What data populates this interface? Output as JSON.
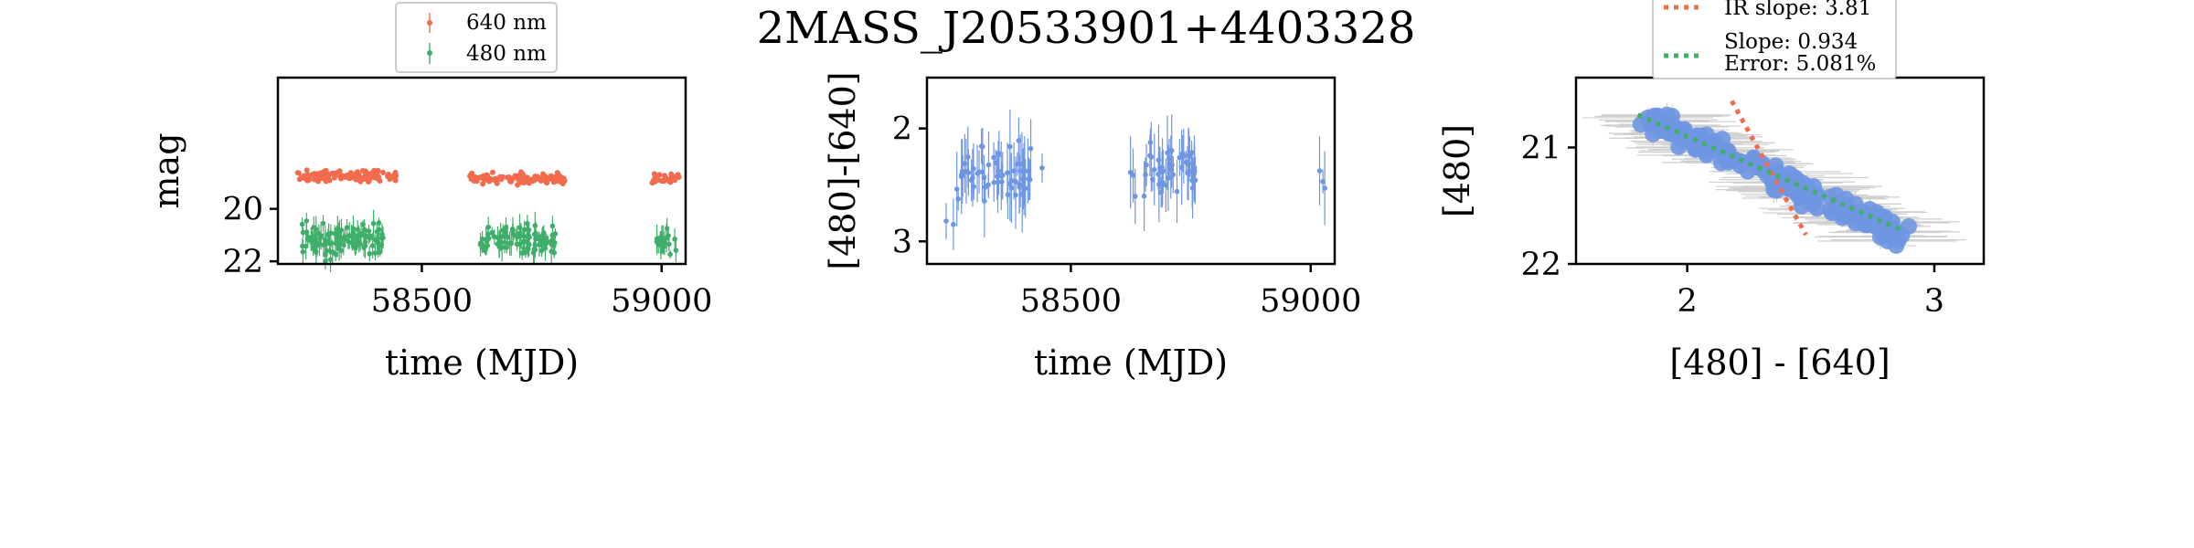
{
  "title": "2MASS_J20533901+4403328",
  "colors": {
    "red": "#f26b4d",
    "green": "#3fae6a",
    "blue": "#6f96e2",
    "errorbar_gray": "#cfcfcf"
  },
  "chart_data": [
    {
      "type": "scatter",
      "name": "light-curve",
      "xlabel": "time (MJD)",
      "ylabel": "mag",
      "xlim": [
        58200,
        59050
      ],
      "ylim": [
        22.1,
        15.0
      ],
      "y_inverted": true,
      "xticks": [
        58500,
        59000
      ],
      "xtick_labels": [
        "58500",
        "59000"
      ],
      "yticks": [
        20,
        22
      ],
      "ytick_labels": [
        "20",
        "22"
      ],
      "legend_placement": "top-center, above axes",
      "series": [
        {
          "name": "640 nm",
          "color": "#f26b4d",
          "marker": "point",
          "seasons": [
            {
              "x_range": [
                58240,
                58450
              ],
              "y_center": 18.75,
              "y_spread": 0.3,
              "count": 130
            },
            {
              "x_range": [
                58600,
                58800
              ],
              "y_center": 18.85,
              "y_spread": 0.3,
              "count": 110
            },
            {
              "x_range": [
                58980,
                59040
              ],
              "y_center": 18.85,
              "y_spread": 0.3,
              "count": 25
            }
          ]
        },
        {
          "name": "480 nm",
          "color": "#3fae6a",
          "marker": "point with errorbar",
          "seasons": [
            {
              "x_range": [
                58250,
                58420
              ],
              "y_center": 21.2,
              "y_spread": 0.9,
              "count": 110
            },
            {
              "x_range": [
                58620,
                58780
              ],
              "y_center": 21.2,
              "y_spread": 0.8,
              "count": 90
            },
            {
              "x_range": [
                58990,
                59030
              ],
              "y_center": 21.25,
              "y_spread": 0.7,
              "count": 18
            }
          ]
        }
      ]
    },
    {
      "type": "scatter",
      "name": "color-curve",
      "xlabel": "time (MJD)",
      "ylabel": "[480]-[640]",
      "xlim": [
        58200,
        59050
      ],
      "ylim": [
        3.2,
        1.55
      ],
      "y_inverted": true,
      "xticks": [
        58500,
        59000
      ],
      "xtick_labels": [
        "58500",
        "59000"
      ],
      "yticks": [
        2,
        3
      ],
      "ytick_labels": [
        "2",
        "3"
      ],
      "series": [
        {
          "name": "",
          "color": "#6f96e2",
          "marker": "point with errorbar",
          "seasons": [
            {
              "x_range": [
                58260,
                58420
              ],
              "y_center": 2.4,
              "y_spread": 0.7,
              "count": 60
            },
            {
              "x_range": [
                58620,
                58760
              ],
              "y_center": 2.35,
              "y_spread": 0.7,
              "count": 50
            },
            {
              "x_range": [
                59015,
                59030
              ],
              "y_center": 2.5,
              "y_spread": 0.5,
              "count": 3
            }
          ],
          "extra_points": [
            [
              58240,
              2.82
            ],
            [
              58255,
              2.85
            ],
            [
              58440,
              2.35
            ]
          ]
        }
      ]
    },
    {
      "type": "scatter",
      "name": "color-magnitude",
      "xlabel": "[480] - [640]",
      "ylabel": "[480]",
      "xlim": [
        1.55,
        3.2
      ],
      "ylim": [
        22.0,
        20.4
      ],
      "y_inverted": true,
      "xticks": [
        2,
        3
      ],
      "xtick_labels": [
        "2",
        "3"
      ],
      "yticks": [
        21,
        22
      ],
      "ytick_labels": [
        "21",
        "22"
      ],
      "legend_placement": "top-center, above axes",
      "series": [
        {
          "name": "",
          "color": "#6f96e2",
          "marker": "circle with gray errorbars",
          "cloud": {
            "x_start": 1.85,
            "x_end": 2.85,
            "y_start": 20.75,
            "y_end": 21.75,
            "count": 170
          }
        }
      ],
      "fit_lines": [
        {
          "label": "IR slope: 3.81",
          "color": "#f26b4d",
          "style": "dotted",
          "x": [
            2.18,
            2.48
          ],
          "y": [
            20.6,
            21.75
          ]
        },
        {
          "label": "Slope: 0.934",
          "label2": "Error: 5.081%",
          "color": "#3fae6a",
          "style": "dotted",
          "x": [
            1.8,
            2.88
          ],
          "y": [
            20.72,
            21.72
          ]
        }
      ]
    }
  ]
}
